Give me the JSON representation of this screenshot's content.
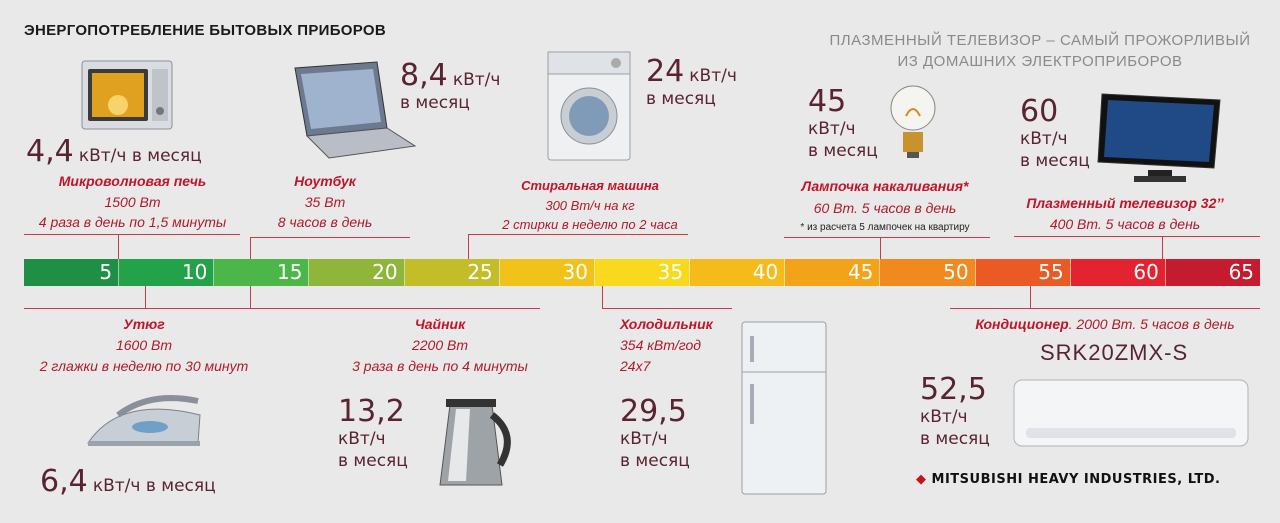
{
  "title": "ЭНЕРГОПОТРЕБЛЕНИЕ БЫТОВЫХ ПРИБОРОВ",
  "subtitle": [
    "ПЛАЗМЕННЫЙ ТЕЛЕВИЗОР – САМЫЙ ПРОЖОРЛИВЫЙ",
    "ИЗ ДОМАШНИХ ЭЛЕКТРОПРИБОРОВ"
  ],
  "scale": {
    "ticks": [
      "5",
      "10",
      "15",
      "20",
      "25",
      "30",
      "35",
      "40",
      "45",
      "50",
      "55",
      "60",
      "65"
    ],
    "colors": [
      "#1e8f44",
      "#24a24a",
      "#4cb748",
      "#8fb63a",
      "#c4bd2a",
      "#f0c21a",
      "#f9d91e",
      "#f5bb1a",
      "#f2a317",
      "#f08a1e",
      "#ea5a25",
      "#e42330",
      "#c41c2e"
    ]
  },
  "microwave": {
    "value": "4,4",
    "unit": "кВт/ч в месяц",
    "name": "Микроволновая печь",
    "power": "1500 Вт",
    "usage": "4 раза в день по 1,5 минуты"
  },
  "laptop": {
    "value": "8,4",
    "unit": "кВт/ч",
    "unit2": "в месяц",
    "name": "Ноутбук",
    "power": "35 Вт",
    "usage": "8 часов в день"
  },
  "washer": {
    "value": "24",
    "unit": "кВт/ч",
    "unit2": "в месяц",
    "name": "Стиральная машина",
    "power": "300 Вт/ч на кг",
    "usage": "2 стирки в неделю по 2 часа"
  },
  "lamp": {
    "value": "45",
    "unit": "кВт/ч",
    "unit2": "в месяц",
    "name": "Лампочка накаливания*",
    "power": "60 Вт. 5 часов в день",
    "footnote": "* из расчета 5 лампочек на квартиру"
  },
  "tv": {
    "value": "60",
    "unit": "кВт/ч",
    "unit2": "в месяц",
    "name": "Плазменный телевизор 32’’",
    "power": "400 Вт. 5 часов в день"
  },
  "iron": {
    "value": "6,4",
    "unit": "кВт/ч в месяц",
    "name": "Утюг",
    "power": "1600 Вт",
    "usage": "2 глажки в неделю по 30 минут"
  },
  "kettle": {
    "value": "13,2",
    "unit": "кВт/ч",
    "unit2": "в месяц",
    "name": "Чайник",
    "power": "2200 Вт",
    "usage": "3 раза в день по 4 минуты"
  },
  "fridge": {
    "value": "29,5",
    "unit": "кВт/ч",
    "unit2": "в месяц",
    "name": "Холодильник",
    "power": "354 кВт/год",
    "usage": "24x7"
  },
  "ac": {
    "value": "52,5",
    "unit": "кВт/ч",
    "unit2": "в месяц",
    "name": "Кондиционер",
    "desc": ". 2000 Вт. 5 часов в день",
    "model": "SRK20ZMX-S"
  },
  "brand": "MITSUBISHI HEAVY INDUSTRIES, LTD."
}
